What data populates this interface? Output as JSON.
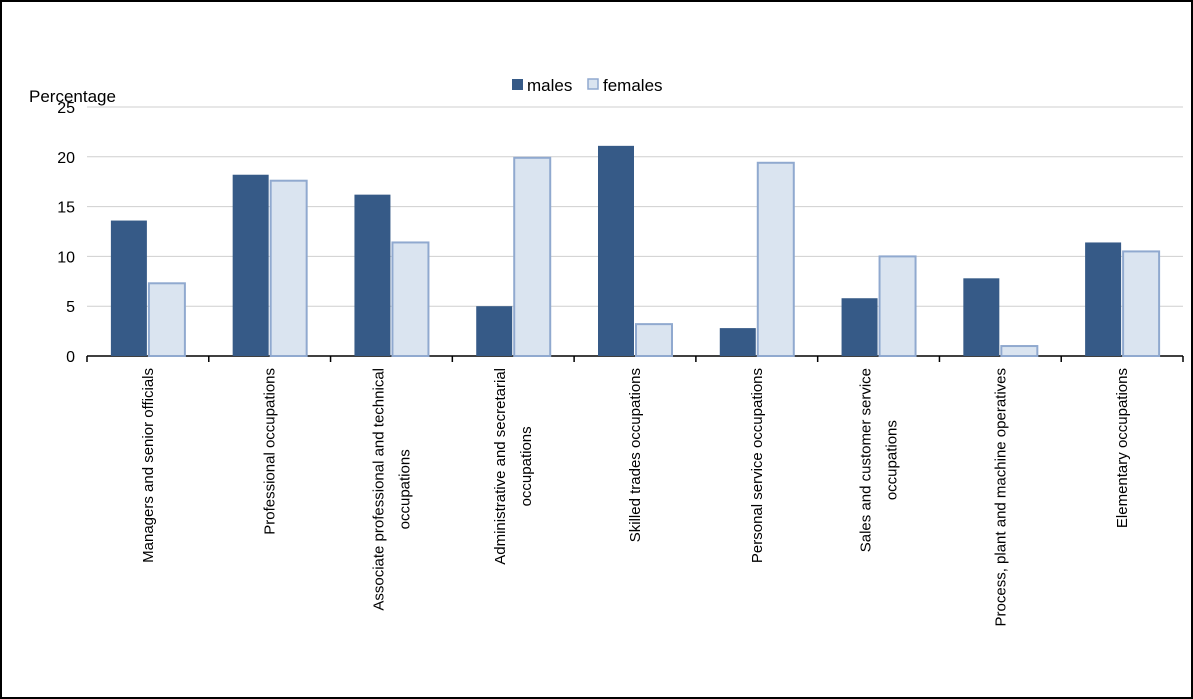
{
  "chart_data": {
    "type": "bar",
    "title": "",
    "ylabel": "Percentage",
    "xlabel": "",
    "ylim": [
      0,
      25
    ],
    "yticks": [
      0,
      5,
      10,
      15,
      20,
      25
    ],
    "grid": true,
    "legend_position": "top-center",
    "categories": [
      "Managers and senior officials",
      "Professional occupations",
      "Associate professional and technical occupations",
      "Administrative and secretarial occupations",
      "Skilled trades occupations",
      "Personal service occupations",
      "Sales and customer service occupations",
      "Process, plant and machine operatives",
      "Elementary occupations"
    ],
    "category_label_lines": [
      [
        "Managers and senior officials"
      ],
      [
        "Professional occupations"
      ],
      [
        "Associate professional and technical",
        "occupations"
      ],
      [
        "Administrative and secretarial",
        "occupations"
      ],
      [
        "Skilled trades occupations"
      ],
      [
        "Personal service occupations"
      ],
      [
        "Sales and customer service",
        "occupations"
      ],
      [
        "Process, plant and machine operatives"
      ],
      [
        "Elementary occupations"
      ]
    ],
    "series": [
      {
        "name": "males",
        "color": "#365A87",
        "values": [
          13.6,
          18.2,
          16.2,
          5.0,
          21.1,
          2.8,
          5.8,
          7.8,
          11.4
        ]
      },
      {
        "name": "females",
        "color": "#DAE4F0",
        "stroke": "#90A9CF",
        "values": [
          7.3,
          17.6,
          11.4,
          19.9,
          3.2,
          19.4,
          10.0,
          1.0,
          10.5
        ]
      }
    ]
  }
}
